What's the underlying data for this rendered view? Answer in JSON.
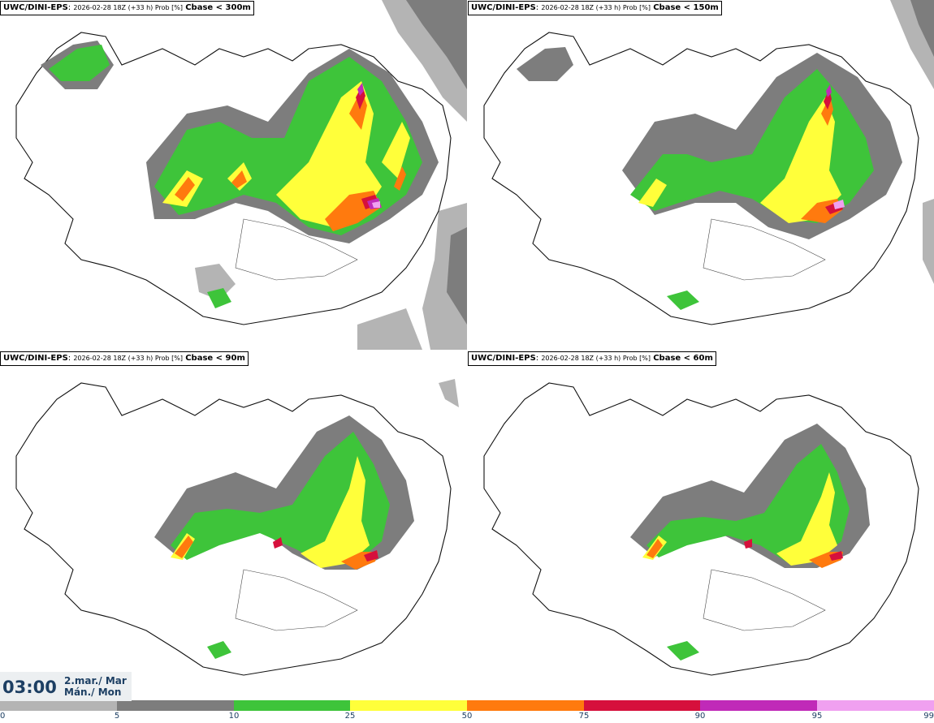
{
  "panels": [
    {
      "model": "UWC/DINI-EPS",
      "meta": "2026-02-28 18Z (+33 h) Prob [%]",
      "threshold": "Cbase < 300m"
    },
    {
      "model": "UWC/DINI-EPS",
      "meta": "2026-02-28 18Z (+33 h) Prob [%]",
      "threshold": "Cbase < 150m"
    },
    {
      "model": "UWC/DINI-EPS",
      "meta": "2026-02-28 18Z (+33 h) Prob [%]",
      "threshold": "Cbase < 90m"
    },
    {
      "model": "UWC/DINI-EPS",
      "meta": "2026-02-28 18Z (+33 h) Prob [%]",
      "threshold": "Cbase < 60m"
    }
  ],
  "time": {
    "value": "03:00",
    "date_line1": "2.mar./ Mar",
    "date_line2": "Mán./ Mon"
  },
  "colorbar": {
    "ticks": [
      "0",
      "5",
      "10",
      "25",
      "50",
      "75",
      "90",
      "95",
      "99"
    ],
    "colors": [
      "#ffffff",
      "#b4b4b4",
      "#7d7d7d",
      "#3ec43a",
      "#ffff3a",
      "#ff7a0e",
      "#d6103c",
      "#c02ab8",
      "#f0a0f0"
    ]
  },
  "legend_colors": {
    "light_gray": "#b4b4b4",
    "gray": "#7d7d7d",
    "green": "#3ec43a",
    "yellow": "#ffff3a",
    "orange": "#ff7a0e",
    "red": "#d6103c",
    "magenta": "#c02ab8",
    "pink": "#f0a0f0"
  }
}
